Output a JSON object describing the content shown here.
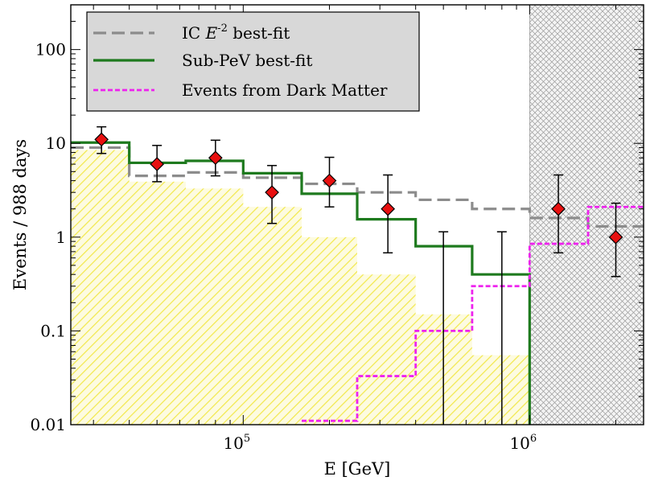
{
  "chart_data": {
    "type": "line",
    "xlabel": "E [GeV]",
    "ylabel": "Events / 988 days",
    "xscale": "log",
    "yscale": "log",
    "xlim": [
      25000,
      2500000
    ],
    "ylim": [
      0.01,
      300
    ],
    "x_ticks": [
      {
        "value": 100000,
        "base": "10",
        "exp": "5"
      },
      {
        "value": 1000000,
        "base": "10",
        "exp": "6"
      }
    ],
    "y_ticks": [
      {
        "value": 0.01,
        "label": "0.01"
      },
      {
        "value": 0.1,
        "label": "0.1"
      },
      {
        "value": 1,
        "label": "1"
      },
      {
        "value": 10,
        "label": "10"
      },
      {
        "value": 100,
        "label": "100"
      }
    ],
    "legend": {
      "position": "top-left",
      "entries": [
        {
          "series": "ic",
          "pre": "IC ",
          "italic": "E",
          "sup": "-2",
          "post": " best-fit"
        },
        {
          "series": "subpev",
          "pre": "Sub-PeV best-fit",
          "italic": "",
          "sup": "",
          "post": ""
        },
        {
          "series": "dm",
          "pre": "Events from Dark Matter",
          "italic": "",
          "sup": "",
          "post": ""
        }
      ]
    },
    "bin_edges": [
      25000,
      40000,
      63000,
      100000,
      160000,
      250000,
      400000,
      630000,
      1000000,
      1600000,
      2500000
    ],
    "series": [
      {
        "id": "ic",
        "style": "dashed",
        "color": "#8c8c8c",
        "values": [
          9.0,
          4.5,
          4.9,
          4.3,
          3.7,
          3.0,
          2.5,
          2.0,
          1.6,
          1.3
        ]
      },
      {
        "id": "subpev",
        "style": "solid",
        "color": "#1e7a1e",
        "values": [
          10.2,
          6.2,
          6.5,
          4.8,
          2.9,
          1.55,
          0.8,
          0.4,
          0.005,
          null
        ]
      },
      {
        "id": "dm",
        "style": "dotted",
        "color": "#ee22ee",
        "values": [
          null,
          null,
          null,
          null,
          0.011,
          0.033,
          0.1,
          0.3,
          0.85,
          2.1
        ]
      }
    ],
    "background_band": {
      "color": "#f2e84a",
      "values": [
        8.5,
        3.9,
        3.3,
        2.1,
        1.0,
        0.4,
        0.15,
        0.055
      ]
    },
    "excluded_region": {
      "xmin": 1000000,
      "xmax": 2500000,
      "pattern": "crosshatch"
    },
    "data_points": [
      {
        "x": 32000,
        "y": 11,
        "ylo": 7.8,
        "yhi": 15
      },
      {
        "x": 50000,
        "y": 6,
        "ylo": 3.9,
        "yhi": 9.5
      },
      {
        "x": 80000,
        "y": 7,
        "ylo": 4.5,
        "yhi": 10.8
      },
      {
        "x": 126000,
        "y": 3,
        "ylo": 1.4,
        "yhi": 5.8
      },
      {
        "x": 200000,
        "y": 4,
        "ylo": 2.1,
        "yhi": 7.1
      },
      {
        "x": 320000,
        "y": 2,
        "ylo": 0.68,
        "yhi": 4.6
      },
      {
        "x": 500000,
        "y": 0.005,
        "ylo": 0.005,
        "yhi": 1.14
      },
      {
        "x": 800000,
        "y": 0.005,
        "ylo": 0.005,
        "yhi": 1.14
      },
      {
        "x": 1260000,
        "y": 2,
        "ylo": 0.68,
        "yhi": 4.6
      },
      {
        "x": 2000000,
        "y": 1,
        "ylo": 0.38,
        "yhi": 2.3
      }
    ],
    "marker_color": "#e81010"
  }
}
